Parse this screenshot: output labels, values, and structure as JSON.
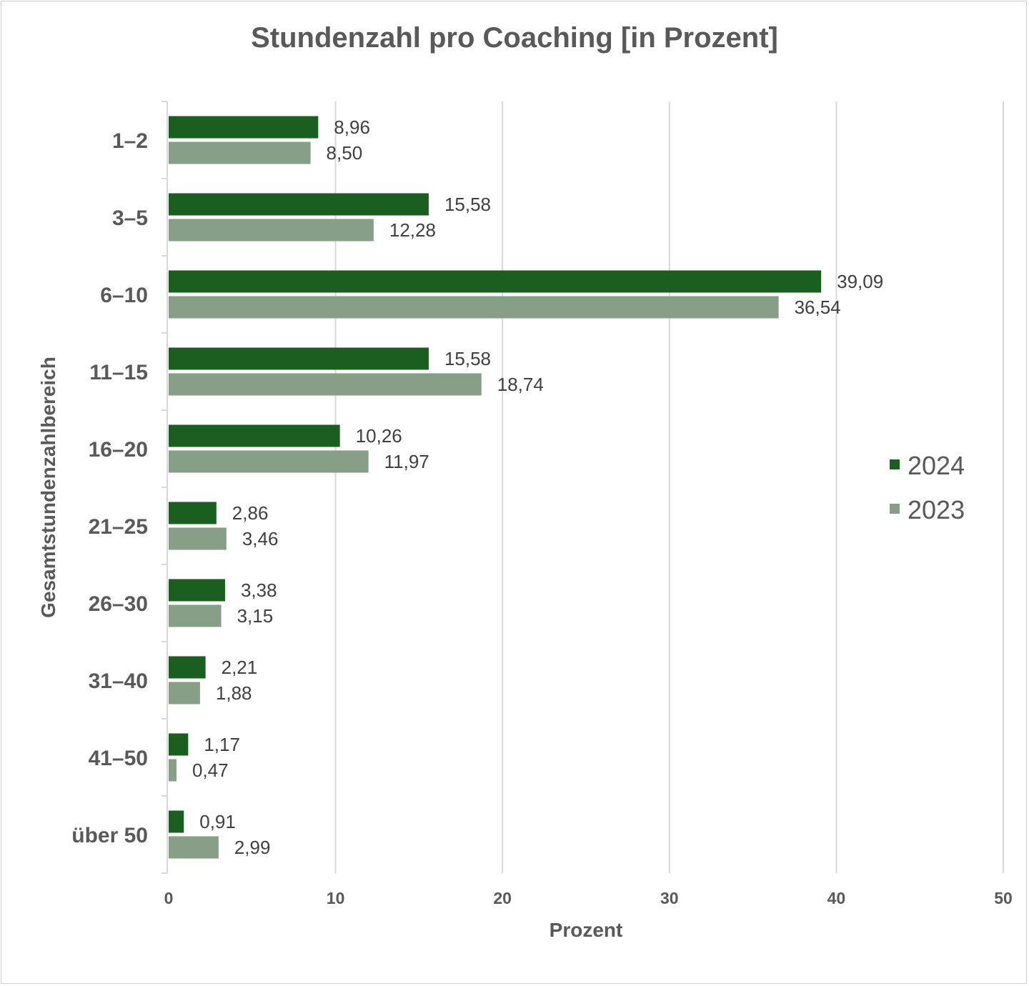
{
  "chart_data": {
    "type": "bar",
    "orientation": "horizontal",
    "title": "Stundenzahl pro Coaching  [in Prozent]",
    "xlabel": "Prozent",
    "ylabel": "Gesamtstundenzahlbereich",
    "xlim": [
      0,
      50
    ],
    "xticks": [
      "0",
      "10",
      "20",
      "30",
      "40",
      "50"
    ],
    "grid": "vertical",
    "legend_position": "right",
    "categories": [
      "1–2",
      "3–5",
      "6–10",
      "11–15",
      "16–20",
      "21–25",
      "26–30",
      "31–40",
      "41–50",
      "über 50"
    ],
    "series": [
      {
        "name": "2024",
        "color": "#1a5e20",
        "values": [
          8.96,
          15.58,
          39.09,
          15.58,
          10.26,
          2.86,
          3.38,
          2.21,
          1.17,
          0.91
        ],
        "labels": [
          "8,96",
          "15,58",
          "39,09",
          "15,58",
          "10,26",
          "2,86",
          "3,38",
          "2,21",
          "1,17",
          "0,91"
        ]
      },
      {
        "name": "2023",
        "color": "#879e87",
        "values": [
          8.5,
          12.28,
          36.54,
          18.74,
          11.97,
          3.46,
          3.15,
          1.88,
          0.47,
          2.99
        ],
        "labels": [
          "8,50",
          "12,28",
          "36,54",
          "18,74",
          "11,97",
          "3,46",
          "3,15",
          "1,88",
          "0,47",
          "2,99"
        ]
      }
    ]
  }
}
